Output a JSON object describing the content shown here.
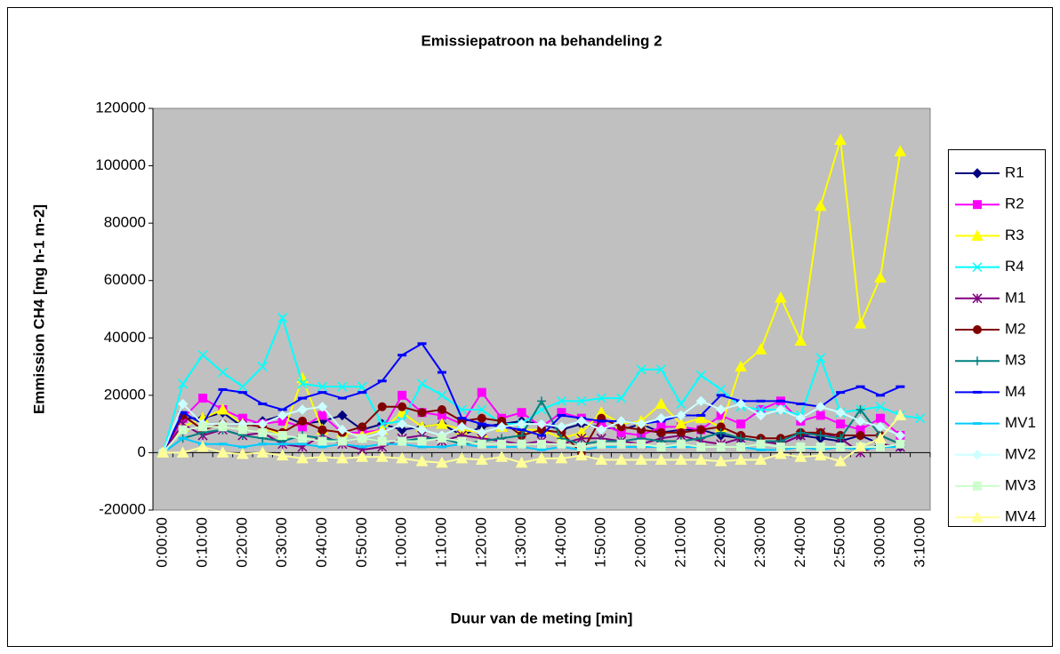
{
  "chart_data": {
    "type": "line",
    "title": "Emissiepatroon na behandeling 2",
    "x_label": "Duur van de meting [min]",
    "y_label": "Emmission CH4 [mg h-1 m-2]",
    "categories": [
      "0:00:00",
      null,
      "0:10:00",
      null,
      "0:20:00",
      null,
      "0:30:00",
      null,
      "0:40:00",
      null,
      "0:50:00",
      null,
      "1:00:00",
      null,
      "1:10:00",
      null,
      "1:20:00",
      null,
      "1:30:00",
      null,
      "1:40:00",
      null,
      "1:50:00",
      null,
      "2:00:00",
      null,
      "2:10:00",
      null,
      "2:20:00",
      null,
      "2:30:00",
      null,
      "2:40:00",
      null,
      "2:50:00",
      null,
      "3:00:00",
      null,
      "3:10:00"
    ],
    "ylim": [
      -20000,
      120000
    ],
    "yticks": [
      -20000,
      0,
      20000,
      40000,
      60000,
      80000,
      100000,
      120000
    ],
    "plot_background": "#c0c0c0",
    "legend": "right",
    "series": [
      {
        "name": "R1",
        "color": "#000080",
        "marker": "diamond",
        "values": [
          0,
          12000,
          12000,
          14000,
          9000,
          11000,
          13000,
          10000,
          11000,
          13000,
          8000,
          10000,
          8000,
          9000,
          10000,
          6000,
          9000,
          10000,
          11000,
          10000,
          8000,
          10000,
          9000,
          8000,
          10000,
          7000,
          8000,
          8000,
          6000,
          5000,
          4000,
          3000,
          6000,
          5000,
          4000,
          6000,
          3000,
          2000,
          null
        ]
      },
      {
        "name": "R2",
        "color": "#ff00ff",
        "marker": "square",
        "values": [
          0,
          12000,
          19000,
          15000,
          12000,
          10000,
          11000,
          9000,
          13000,
          7000,
          7000,
          8000,
          20000,
          14000,
          13000,
          10000,
          21000,
          12000,
          14000,
          9000,
          14000,
          12000,
          10000,
          7000,
          6000,
          9000,
          9000,
          8000,
          13000,
          10000,
          15000,
          18000,
          11000,
          13000,
          10000,
          8000,
          12000,
          6000,
          null
        ]
      },
      {
        "name": "R3",
        "color": "#ffff00",
        "marker": "triangle",
        "values": [
          0,
          9000,
          12000,
          15000,
          10000,
          9000,
          6000,
          26000,
          8000,
          7000,
          6000,
          8000,
          14000,
          9000,
          10000,
          8000,
          7000,
          9000,
          8000,
          8000,
          5000,
          7000,
          14000,
          10000,
          11000,
          17000,
          10000,
          12000,
          9000,
          30000,
          36000,
          54000,
          39000,
          86000,
          109000,
          45000,
          61000,
          105000,
          null
        ]
      },
      {
        "name": "R4",
        "color": "#00ffff",
        "marker": "x",
        "values": [
          0,
          24000,
          34000,
          28000,
          23000,
          30000,
          47000,
          24000,
          23000,
          23000,
          23000,
          10000,
          11000,
          24000,
          20000,
          15000,
          15000,
          10000,
          10000,
          15000,
          18000,
          18000,
          19000,
          19000,
          29000,
          29000,
          17000,
          27000,
          22000,
          16000,
          15000,
          15000,
          13000,
          33000,
          14000,
          15000,
          16000,
          13000,
          12000
        ]
      },
      {
        "name": "M1",
        "color": "#800080",
        "marker": "asterisk",
        "values": [
          0,
          10000,
          6000,
          8000,
          6000,
          7000,
          3000,
          2000,
          6000,
          3000,
          1000,
          2000,
          5000,
          6000,
          4000,
          6000,
          5000,
          4000,
          3000,
          4000,
          3000,
          5000,
          5000,
          4000,
          3000,
          5000,
          6000,
          4000,
          3000,
          5000,
          4000,
          3000,
          6000,
          7000,
          5000,
          0,
          3000,
          2000,
          null
        ]
      },
      {
        "name": "M2",
        "color": "#800000",
        "marker": "circle",
        "values": [
          0,
          13000,
          8000,
          10000,
          10000,
          9000,
          7000,
          11000,
          8000,
          7000,
          9000,
          16000,
          16000,
          14000,
          15000,
          11000,
          12000,
          11000,
          6000,
          8000,
          7000,
          0,
          12000,
          9000,
          8000,
          7000,
          7000,
          8000,
          9000,
          6000,
          5000,
          5000,
          7000,
          7000,
          6000,
          6000,
          6000,
          3000,
          null
        ]
      },
      {
        "name": "M3",
        "color": "#008080",
        "marker": "plus",
        "values": [
          0,
          5000,
          7000,
          8000,
          6000,
          5000,
          4000,
          6000,
          5000,
          4000,
          5000,
          4000,
          4000,
          5000,
          5000,
          3000,
          4000,
          5000,
          6000,
          18000,
          5000,
          3000,
          4000,
          4000,
          5000,
          4000,
          4000,
          5000,
          7000,
          5000,
          4000,
          4000,
          7000,
          6000,
          5000,
          15000,
          6000,
          3000,
          null
        ]
      },
      {
        "name": "M4",
        "color": "#0000ff",
        "marker": "dash",
        "values": [
          0,
          14000,
          10000,
          22000,
          21000,
          17000,
          15000,
          19000,
          21000,
          19000,
          21000,
          25000,
          34000,
          38000,
          28000,
          12000,
          10000,
          9000,
          8000,
          6000,
          13000,
          12000,
          11000,
          11000,
          10000,
          11000,
          13000,
          13000,
          20000,
          18000,
          18000,
          18000,
          17000,
          16000,
          21000,
          23000,
          20000,
          23000,
          null
        ]
      },
      {
        "name": "MV1",
        "color": "#00ccff",
        "marker": "dash",
        "values": [
          0,
          5000,
          3000,
          3000,
          2000,
          3000,
          3000,
          3000,
          2000,
          3000,
          2000,
          3000,
          3000,
          2000,
          2000,
          3000,
          2000,
          2000,
          2000,
          1000,
          2000,
          1000,
          2000,
          2000,
          2000,
          2000,
          2000,
          2000,
          2000,
          2000,
          1000,
          1000,
          2000,
          1000,
          2000,
          1000,
          2000,
          2000,
          null
        ]
      },
      {
        "name": "MV2",
        "color": "#ccffff",
        "marker": "diamond",
        "values": [
          0,
          17000,
          10000,
          10000,
          10000,
          10000,
          13000,
          15000,
          16000,
          8000,
          5000,
          7000,
          10000,
          8000,
          6000,
          9000,
          7000,
          9000,
          10000,
          10000,
          9000,
          11000,
          8000,
          11000,
          10000,
          12000,
          13000,
          18000,
          15000,
          17000,
          13000,
          15000,
          12000,
          16000,
          14000,
          11000,
          9000,
          6000,
          null
        ]
      },
      {
        "name": "MV3",
        "color": "#ccffcc",
        "marker": "square",
        "values": [
          0,
          8000,
          9000,
          9000,
          8000,
          7000,
          6000,
          5000,
          4000,
          4000,
          5000,
          4000,
          4000,
          4000,
          5000,
          4000,
          3000,
          3000,
          3000,
          3000,
          3000,
          2000,
          3000,
          3000,
          3000,
          2000,
          3000,
          2000,
          2000,
          2000,
          3000,
          2000,
          2000,
          2000,
          2000,
          2000,
          2000,
          3000,
          null
        ]
      },
      {
        "name": "MV4",
        "color": "#ffff99",
        "marker": "triangle",
        "values": [
          0,
          0,
          2000,
          0,
          -500,
          0,
          -1000,
          -2000,
          -1500,
          -2000,
          -1500,
          -1500,
          -2000,
          -3000,
          -3500,
          -2000,
          -2500,
          -1500,
          -3500,
          -2000,
          -2000,
          -1000,
          -2500,
          -2500,
          -2500,
          -2500,
          -2500,
          -2500,
          -3000,
          -2500,
          -2500,
          -500,
          -1500,
          -1000,
          -3000,
          2000,
          5000,
          13000,
          null
        ]
      }
    ]
  }
}
